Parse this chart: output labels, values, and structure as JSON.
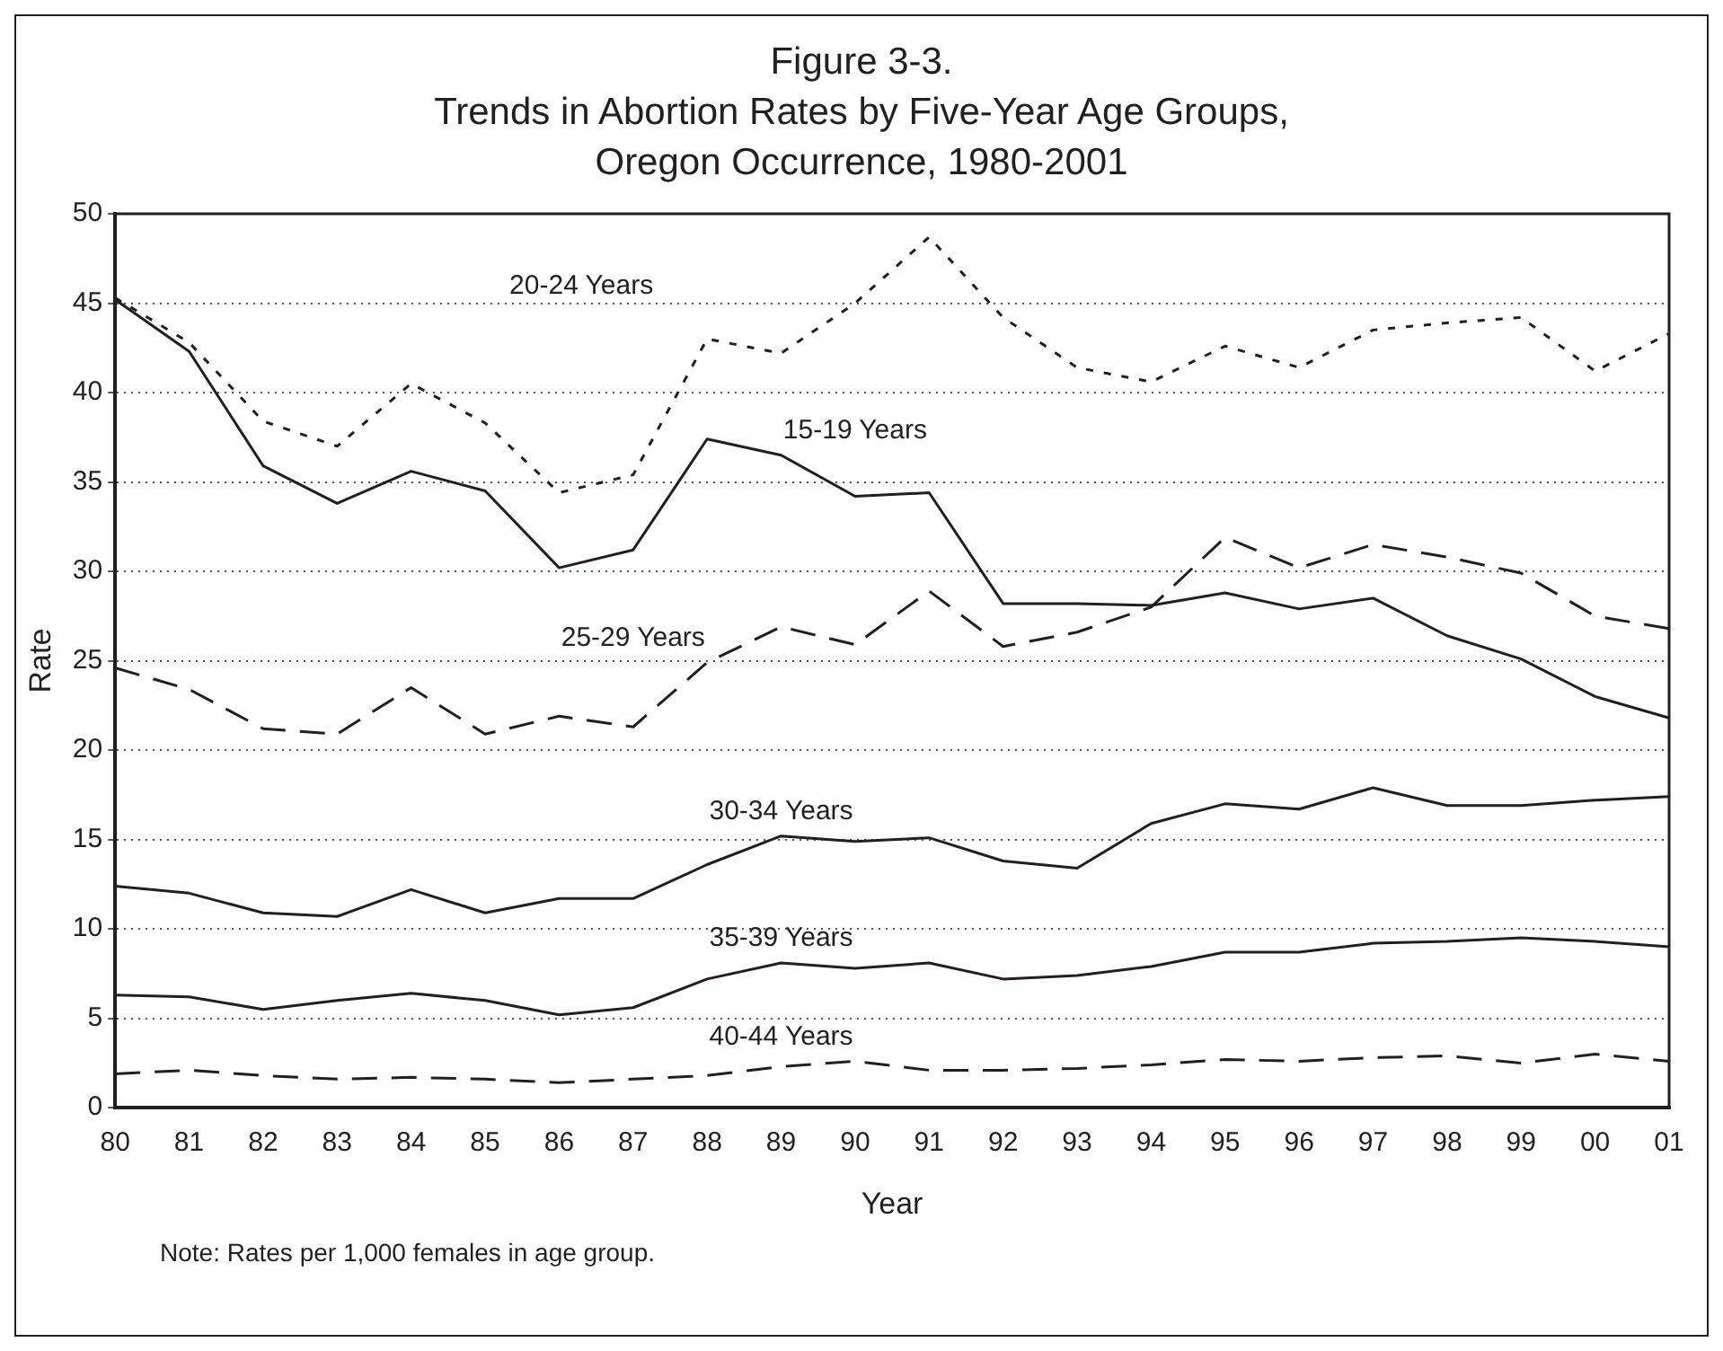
{
  "chart_data": {
    "type": "line",
    "title": "Figure 3-3.",
    "subtitle": "Trends in Abortion Rates by Five-Year Age Groups, Oregon Occurrence, 1980-2001",
    "xlabel": "Year",
    "ylabel": "Rate",
    "categories": [
      "80",
      "81",
      "82",
      "83",
      "84",
      "85",
      "86",
      "87",
      "88",
      "89",
      "90",
      "91",
      "92",
      "93",
      "94",
      "95",
      "96",
      "97",
      "98",
      "99",
      "00",
      "01"
    ],
    "series": [
      {
        "name": "15-19 Years",
        "color": "#231f20",
        "line_style": "solid",
        "values": [
          45.2,
          42.3,
          35.9,
          33.8,
          35.6,
          34.5,
          30.2,
          31.2,
          37.4,
          36.5,
          34.2,
          34.4,
          28.2,
          28.2,
          28.1,
          28.8,
          27.9,
          28.5,
          26.4,
          25.1,
          23.0,
          21.8
        ]
      },
      {
        "name": "20-24 Years",
        "color": "#231f20",
        "line_style": "dotted",
        "values": [
          45.3,
          42.8,
          38.4,
          37.0,
          40.5,
          38.3,
          34.4,
          35.4,
          43.0,
          42.2,
          45.0,
          48.7,
          44.2,
          41.4,
          40.6,
          42.6,
          41.4,
          43.5,
          43.9,
          44.2,
          41.2,
          43.3
        ]
      },
      {
        "name": "25-29 Years",
        "color": "#231f20",
        "line_style": "dashed",
        "values": [
          24.6,
          23.4,
          21.2,
          20.9,
          23.5,
          20.9,
          21.9,
          21.3,
          24.9,
          26.9,
          25.9,
          28.9,
          25.8,
          26.6,
          28.0,
          31.9,
          30.2,
          31.5,
          30.8,
          29.9,
          27.5,
          26.8
        ]
      },
      {
        "name": "30-34 Years",
        "color": "#231f20",
        "line_style": "solid",
        "values": [
          12.4,
          12.0,
          10.9,
          10.7,
          12.2,
          10.9,
          11.7,
          11.7,
          13.6,
          15.2,
          14.9,
          15.1,
          13.8,
          13.4,
          15.9,
          17.0,
          16.7,
          17.9,
          16.9,
          16.9,
          17.2,
          17.4
        ]
      },
      {
        "name": "35-39 Years",
        "color": "#231f20",
        "line_style": "solid",
        "values": [
          6.3,
          6.2,
          5.5,
          6.0,
          6.4,
          6.0,
          5.2,
          5.6,
          7.2,
          8.1,
          7.8,
          8.1,
          7.2,
          7.4,
          7.9,
          8.7,
          8.7,
          9.2,
          9.3,
          9.5,
          9.3,
          9.0
        ]
      },
      {
        "name": "40-44 Years",
        "color": "#231f20",
        "line_style": "dashed",
        "values": [
          1.9,
          2.1,
          1.8,
          1.6,
          1.7,
          1.6,
          1.4,
          1.6,
          1.8,
          2.3,
          2.6,
          2.1,
          2.1,
          2.2,
          2.4,
          2.7,
          2.6,
          2.8,
          2.9,
          2.5,
          3.0,
          2.6
        ]
      }
    ],
    "ylim": [
      0,
      50
    ],
    "yticks": [
      0,
      5,
      10,
      15,
      20,
      25,
      30,
      35,
      40,
      45,
      50
    ],
    "grid": "y",
    "legend": false,
    "marker": "none",
    "annotations": [
      "Note:  Rates per 1,000 females in age group."
    ]
  }
}
